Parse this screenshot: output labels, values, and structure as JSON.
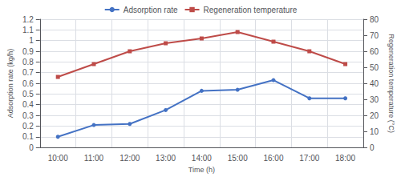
{
  "chart_data": {
    "type": "line",
    "xlabel": "Time (h)",
    "ylabel": "Adsorption rate (kg/h)",
    "y2label": "Regeneration temperature (°C)",
    "categories": [
      "10:00",
      "11:00",
      "12:00",
      "13:00",
      "14:00",
      "15:00",
      "16:00",
      "17:00",
      "18:00"
    ],
    "series": [
      {
        "name": "Adsorption rate",
        "color": "#4472C4",
        "marker": "circle",
        "values": [
          0.1,
          0.21,
          0.22,
          0.35,
          0.53,
          0.54,
          0.63,
          0.46,
          0.46
        ]
      },
      {
        "name": "Regeneration temperature",
        "color": "#BE4B48",
        "marker": "square",
        "axis": "y2",
        "values": [
          44,
          52,
          60,
          65,
          68,
          72,
          66,
          60,
          52
        ]
      }
    ],
    "ylim": [
      0,
      1.2
    ],
    "yticks": [
      0,
      0.1,
      0.2,
      0.3,
      0.4,
      0.5,
      0.6,
      0.7,
      0.8,
      0.9,
      1,
      1.1,
      1.2
    ],
    "y2lim": [
      0,
      80
    ],
    "y2ticks": [
      0,
      10,
      20,
      30,
      40,
      50,
      60,
      70,
      80
    ],
    "grid": true,
    "legend": "top"
  }
}
